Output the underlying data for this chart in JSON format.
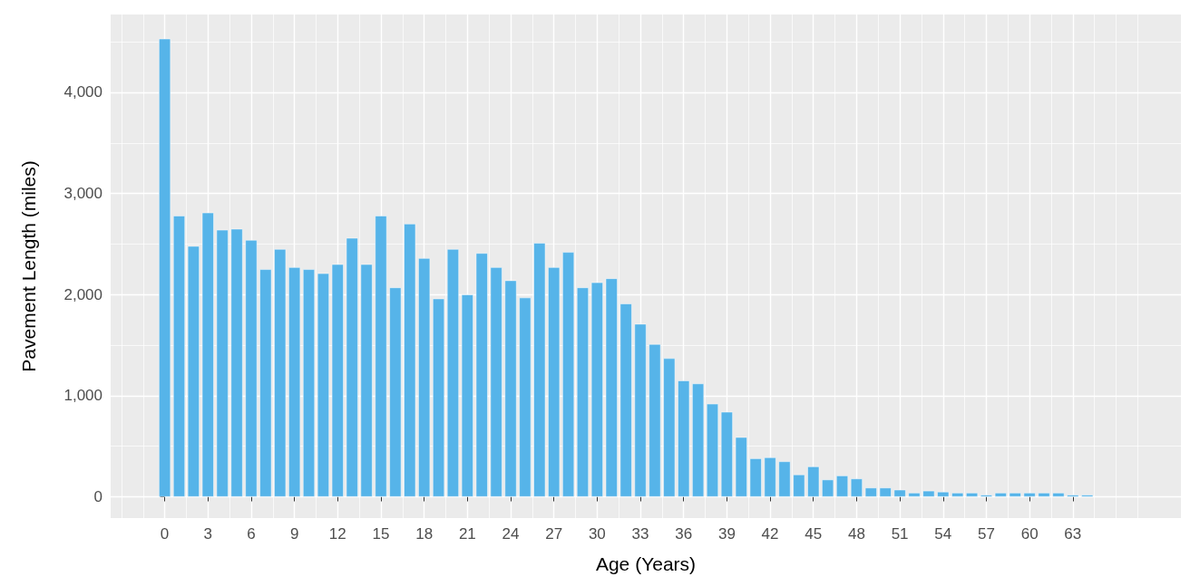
{
  "chart_data": {
    "type": "bar",
    "xlabel": "Age (Years)",
    "ylabel": "Pavement Length (miles)",
    "x": [
      0,
      1,
      2,
      3,
      4,
      5,
      6,
      7,
      8,
      9,
      10,
      11,
      12,
      13,
      14,
      15,
      16,
      17,
      18,
      19,
      20,
      21,
      22,
      23,
      24,
      25,
      26,
      27,
      28,
      29,
      30,
      31,
      32,
      33,
      34,
      35,
      36,
      37,
      38,
      39,
      40,
      41,
      42,
      43,
      44,
      45,
      46,
      47,
      48,
      49,
      50,
      51,
      52,
      53,
      54,
      55,
      56,
      57,
      58,
      59,
      60,
      61,
      62,
      63,
      64
    ],
    "values": [
      4530,
      2780,
      2480,
      2810,
      2640,
      2650,
      2540,
      2250,
      2450,
      2270,
      2250,
      2210,
      2300,
      2560,
      2300,
      2780,
      2070,
      2700,
      2360,
      1960,
      2450,
      2000,
      2410,
      2270,
      2140,
      1970,
      2510,
      2270,
      2420,
      2070,
      2120,
      2160,
      1910,
      1710,
      1510,
      1370,
      1150,
      1120,
      920,
      840,
      590,
      380,
      390,
      350,
      220,
      300,
      170,
      210,
      180,
      90,
      90,
      70,
      40,
      60,
      50,
      40,
      40,
      20,
      40,
      40,
      40,
      40,
      40,
      20,
      20
    ],
    "color": "#56b4e9",
    "xlim": [
      -3.75,
      70.5
    ],
    "xticks": [
      0,
      3,
      6,
      9,
      12,
      15,
      18,
      21,
      24,
      27,
      30,
      33,
      36,
      39,
      42,
      45,
      48,
      51,
      54,
      57,
      60,
      63
    ],
    "ylim": [
      -210,
      4770
    ],
    "yticks": [
      {
        "value": 0,
        "label": "0"
      },
      {
        "value": 1000,
        "label": "1,000"
      },
      {
        "value": 2000,
        "label": "2,000"
      },
      {
        "value": 3000,
        "label": "3,000"
      },
      {
        "value": 4000,
        "label": "4,000"
      }
    ],
    "grid": true
  }
}
